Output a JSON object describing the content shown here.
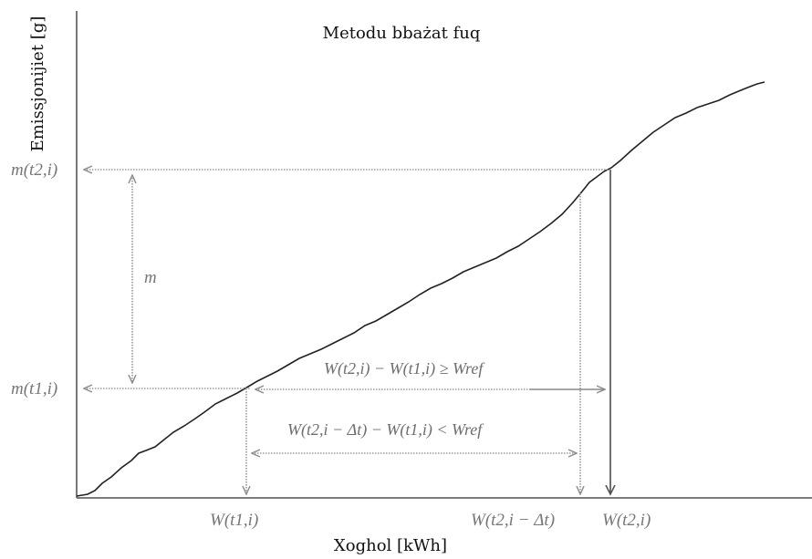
{
  "diagram": {
    "title": "Metodu bbażat fuq",
    "xlabel": "Xoghol [kWh]",
    "ylabel": "Emissjonijiet [g]",
    "y_marks": {
      "upper": "m(t2,i)",
      "lower": "m(t1,i)"
    },
    "mass_label": "m",
    "x_marks": {
      "start": "W(t1,i)",
      "end_minus_dt": "W(t2,i − Δt)",
      "end": "W(t2,i)"
    },
    "condition_ge": "W(t2,i) − W(t1,i) ≥ Wref",
    "condition_lt": "W(t2,i − Δt) − W(t1,i) < Wref"
  }
}
